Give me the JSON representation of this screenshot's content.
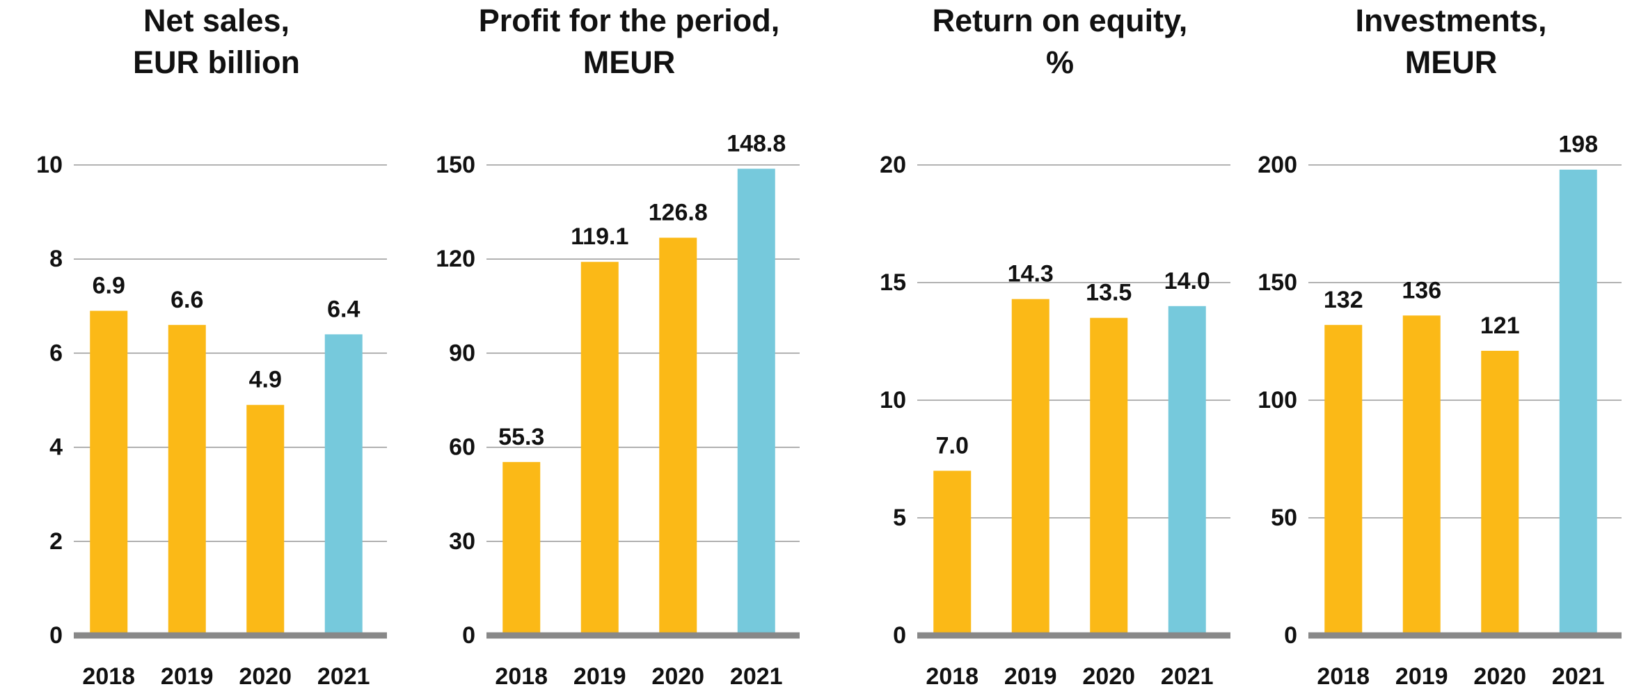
{
  "chart_data": [
    {
      "type": "bar",
      "title": [
        "Net sales,",
        "EUR billion"
      ],
      "categories": [
        "2018",
        "2019",
        "2020",
        "2021"
      ],
      "values": [
        6.9,
        6.6,
        4.9,
        6.4
      ],
      "colors": [
        "#fbb917",
        "#fbb917",
        "#fbb917",
        "#76c9dc"
      ],
      "ylim": [
        0,
        10
      ],
      "yticks": [
        0,
        2,
        4,
        6,
        8,
        10
      ],
      "grid": true
    },
    {
      "type": "bar",
      "title": [
        "Profit for the period,",
        "MEUR"
      ],
      "categories": [
        "2018",
        "2019",
        "2020",
        "2021"
      ],
      "values": [
        55.3,
        119.1,
        126.8,
        148.8
      ],
      "colors": [
        "#fbb917",
        "#fbb917",
        "#fbb917",
        "#76c9dc"
      ],
      "ylim": [
        0,
        150
      ],
      "yticks": [
        0,
        30,
        60,
        90,
        120,
        150
      ],
      "grid": true
    },
    {
      "type": "bar",
      "title": [
        "Return on equity,",
        "%"
      ],
      "categories": [
        "2018",
        "2019",
        "2020",
        "2021"
      ],
      "values": [
        7,
        14.3,
        13.5,
        14
      ],
      "value_labels": [
        "7.0",
        "14.3",
        "13.5",
        "14.0"
      ],
      "colors": [
        "#fbb917",
        "#fbb917",
        "#fbb917",
        "#76c9dc"
      ],
      "ylim": [
        0,
        20
      ],
      "yticks": [
        0,
        5,
        10,
        15,
        20
      ],
      "grid": true
    },
    {
      "type": "bar",
      "title": [
        "Investments,",
        "MEUR"
      ],
      "categories": [
        "2018",
        "2019",
        "2020",
        "2021"
      ],
      "values": [
        132,
        136,
        121,
        198
      ],
      "colors": [
        "#fbb917",
        "#fbb917",
        "#fbb917",
        "#76c9dc"
      ],
      "ylim": [
        0,
        200
      ],
      "yticks": [
        0,
        50,
        100,
        150,
        200
      ],
      "grid": true
    }
  ]
}
